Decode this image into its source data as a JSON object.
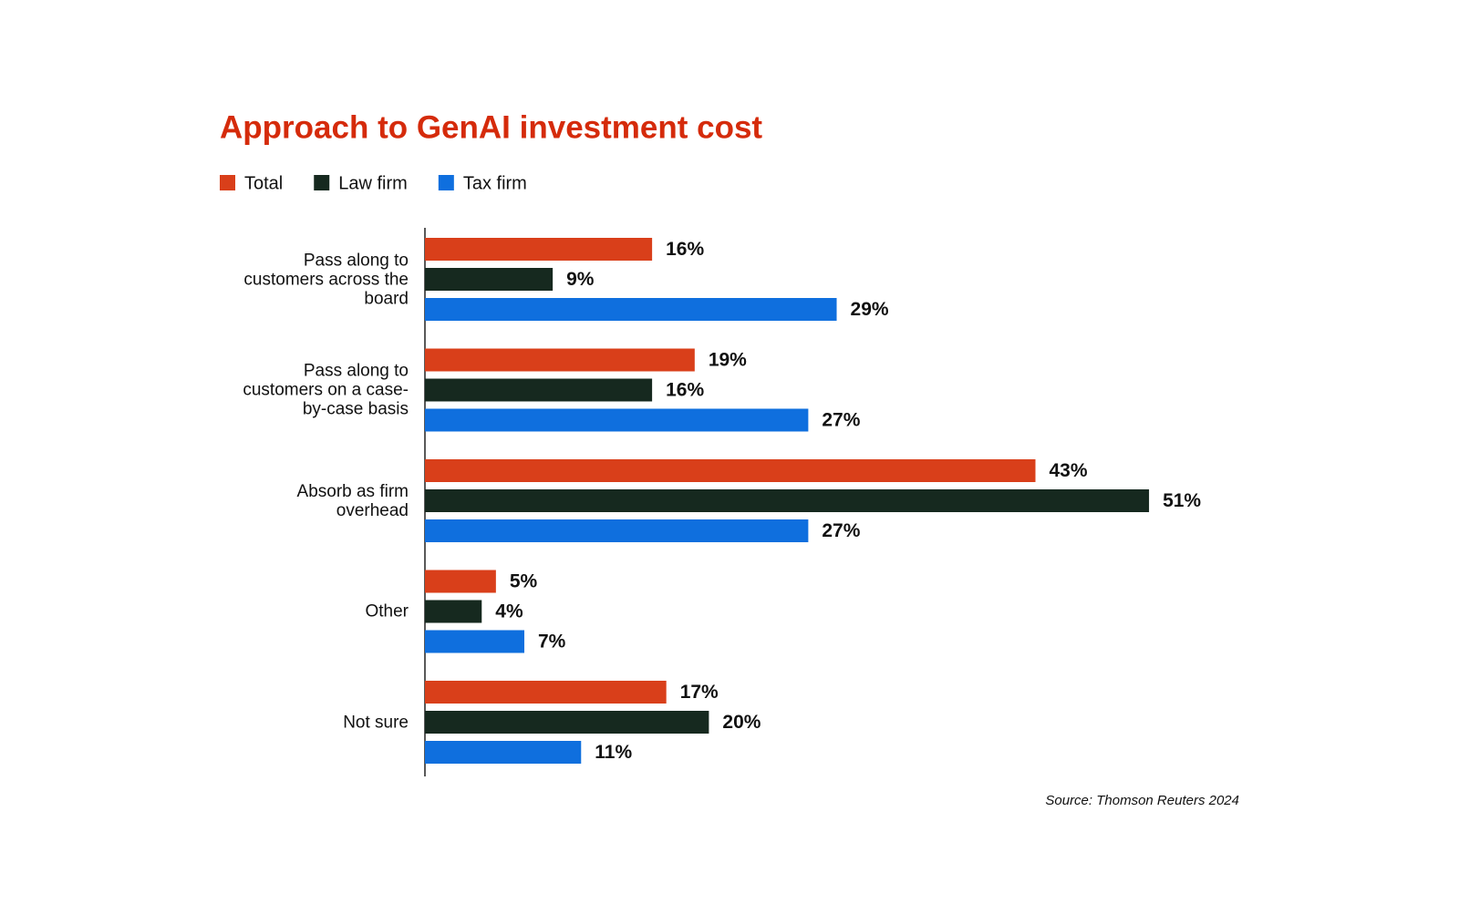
{
  "chart_data": {
    "type": "bar",
    "orientation": "horizontal",
    "title": "Approach to GenAI investment cost",
    "categories": [
      "Pass along to customers across the board",
      "Pass along to customers on a case-by-case basis",
      "Absorb as firm overhead",
      "Other",
      "Not sure"
    ],
    "series": [
      {
        "name": "Total",
        "color": "#d93f1a",
        "values": [
          16,
          19,
          43,
          5,
          17
        ],
        "value_labels": [
          "16%",
          "19%",
          "43%",
          "5%",
          "17%"
        ]
      },
      {
        "name": "Law firm",
        "color": "#16291f",
        "values": [
          9,
          16,
          51,
          4,
          20
        ],
        "value_labels": [
          "9%",
          "16%",
          "51%",
          "4%",
          "20%"
        ]
      },
      {
        "name": "Tax firm",
        "color": "#0f6fde",
        "values": [
          29,
          27,
          27,
          7,
          11
        ],
        "value_labels": [
          "29%",
          "27%",
          "27%",
          "7%",
          "11%"
        ]
      }
    ],
    "source": "Source: Thomson Reuters 2024"
  }
}
